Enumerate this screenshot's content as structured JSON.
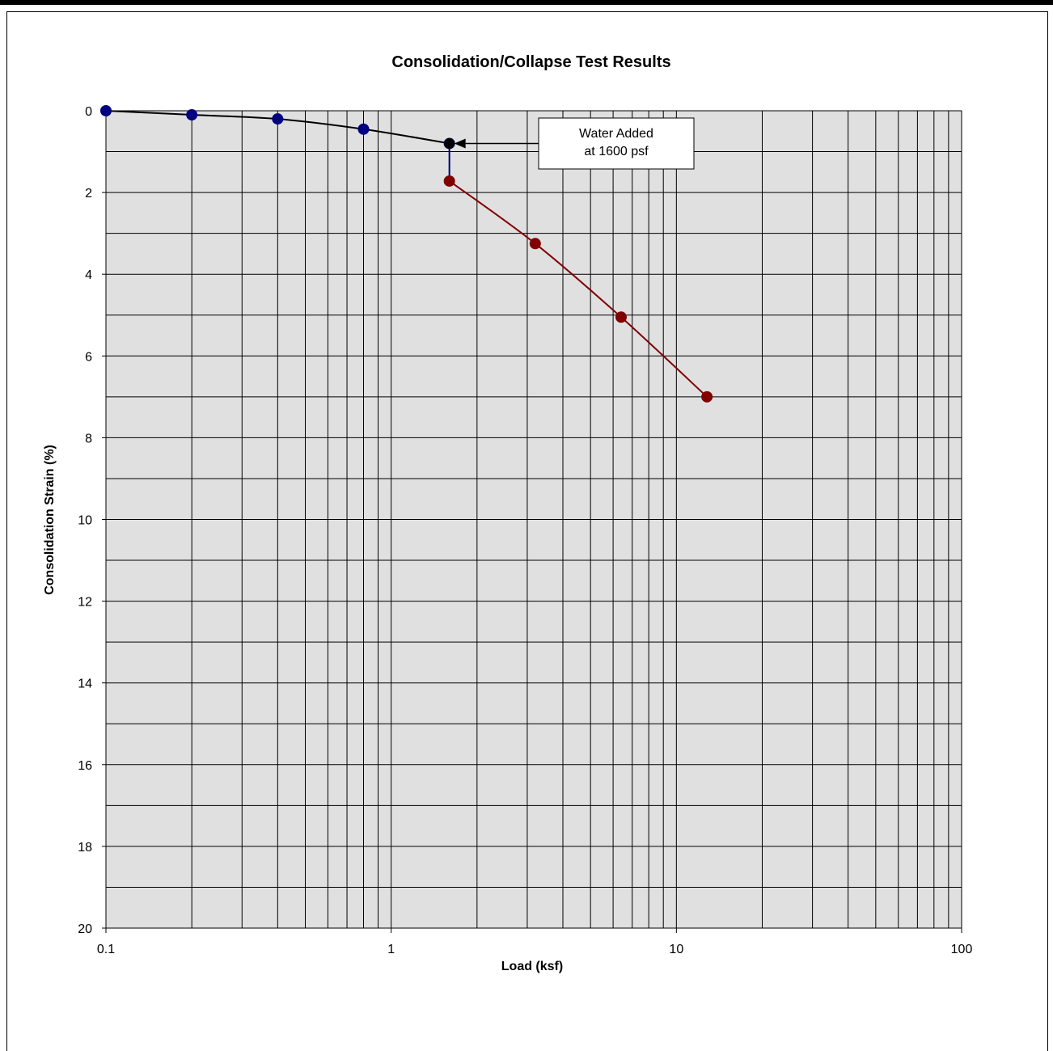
{
  "chart_data": {
    "type": "scatter",
    "title": "Consolidation/Collapse Test Results",
    "xlabel": "Load (ksf)",
    "ylabel": "Consolidation Strain (%)",
    "x_scale": "log",
    "xlim": [
      0.1,
      100
    ],
    "ylim": [
      0,
      20
    ],
    "y_inverted": true,
    "x_ticks": [
      "0.1",
      "1",
      "10",
      "100"
    ],
    "y_ticks": [
      "0",
      "2",
      "4",
      "6",
      "8",
      "10",
      "12",
      "14",
      "16",
      "18",
      "20"
    ],
    "grid": true,
    "series": [
      {
        "color": "#000080",
        "line_color": "#000000",
        "x": [
          0.1,
          0.2,
          0.4,
          0.8,
          1.6
        ],
        "y": [
          0.0,
          0.1,
          0.2,
          0.45,
          0.8
        ]
      },
      {
        "color": "#000080",
        "line_color": "#000080",
        "marker": "none",
        "x": [
          1.6,
          1.6
        ],
        "y": [
          0.8,
          1.72
        ]
      },
      {
        "color": "#800000",
        "line_color": "#800000",
        "x": [
          1.6,
          3.2,
          6.4,
          12.8
        ],
        "y": [
          1.72,
          3.25,
          5.05,
          7.0
        ]
      }
    ],
    "highlight_point": {
      "x": 1.6,
      "y": 0.8,
      "color": "#000000"
    },
    "annotations": [
      {
        "text_lines": [
          "Water Added",
          "at 1600 psf"
        ],
        "points_to": {
          "x": 1.6,
          "y": 0.8
        }
      }
    ]
  }
}
